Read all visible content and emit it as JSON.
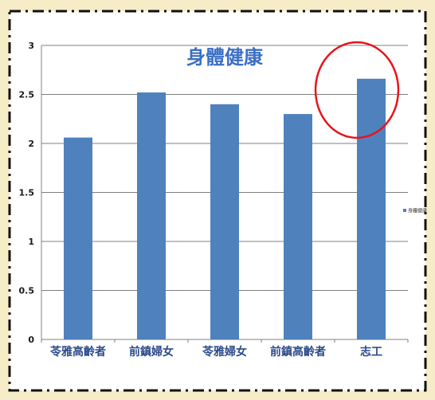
{
  "chart_data": {
    "type": "bar",
    "title": "身體健康",
    "xlabel": "",
    "ylabel": "",
    "categories": [
      "苓雅高齡者",
      "前鎮婦女",
      "苓雅婦女",
      "前鎮高齡者",
      "志工"
    ],
    "series": [
      {
        "name": "身體健康",
        "values": [
          2.06,
          2.52,
          2.4,
          2.3,
          2.66
        ]
      }
    ],
    "ylim": [
      0,
      3
    ],
    "yticks": [
      0,
      0.5,
      1,
      1.5,
      2,
      2.5,
      3
    ],
    "ytick_labels": [
      "0",
      "0.5",
      "1",
      "1.5",
      "2",
      "2.5",
      "3"
    ],
    "grid": true,
    "legend_position": "right",
    "colors": {
      "bar": "#4f81bd",
      "grid": "#808080",
      "highlight_circle": "#e8141b",
      "background": "#f7ecc8",
      "frame_border": "#111111"
    },
    "annotation": {
      "type": "circle",
      "target_category": "志工"
    }
  }
}
